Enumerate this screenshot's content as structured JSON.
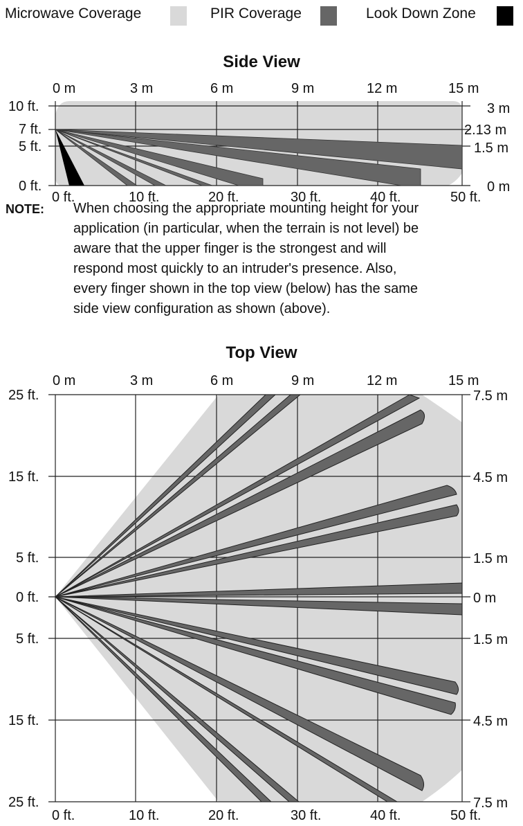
{
  "legend": {
    "microwave": {
      "label": "Microwave Coverage",
      "color": "#d9d9d9"
    },
    "pir": {
      "label": "PIR Coverage",
      "color": "#666666"
    },
    "lookdown": {
      "label": "Look Down Zone",
      "color": "#000000"
    }
  },
  "side_view": {
    "title": "Side View",
    "top_axis": [
      "0 m",
      "3 m",
      "6 m",
      "9 m",
      "12 m",
      "15 m"
    ],
    "bottom_axis": [
      "0 ft.",
      "10 ft.",
      "20 ft.",
      "30 ft.",
      "40 ft.",
      "50 ft."
    ],
    "left_axis": [
      "10 ft.",
      "7 ft.",
      "5 ft.",
      "0 ft."
    ],
    "right_axis": [
      "3 m",
      "2.13 m",
      "1.5 m",
      "0 m"
    ]
  },
  "note": {
    "heading": "NOTE:",
    "lines": [
      "When choosing the appropriate mounting height for your",
      "application (in particular, when the terrain is not level) be",
      "aware that the upper finger is the strongest and will",
      "respond most quickly to an intruder's presence. Also,",
      "every finger shown in the top view (below) has the same",
      "side view configuration as shown (above)."
    ]
  },
  "top_view": {
    "title": "Top View",
    "top_axis": [
      "0 m",
      "3 m",
      "6 m",
      "9 m",
      "12 m",
      "15 m"
    ],
    "bottom_axis": [
      "0 ft.",
      "10 ft.",
      "20 ft.",
      "30 ft.",
      "40 ft.",
      "50 ft."
    ],
    "left_axis": [
      "25 ft.",
      "15 ft.",
      "5 ft.",
      "0 ft.",
      "5 ft.",
      "15 ft.",
      "25 ft."
    ],
    "right_axis": [
      "7.5 m",
      "4.5 m",
      "1.5 m",
      "0 m",
      "1.5 m",
      "4.5 m",
      "7.5 m"
    ]
  }
}
